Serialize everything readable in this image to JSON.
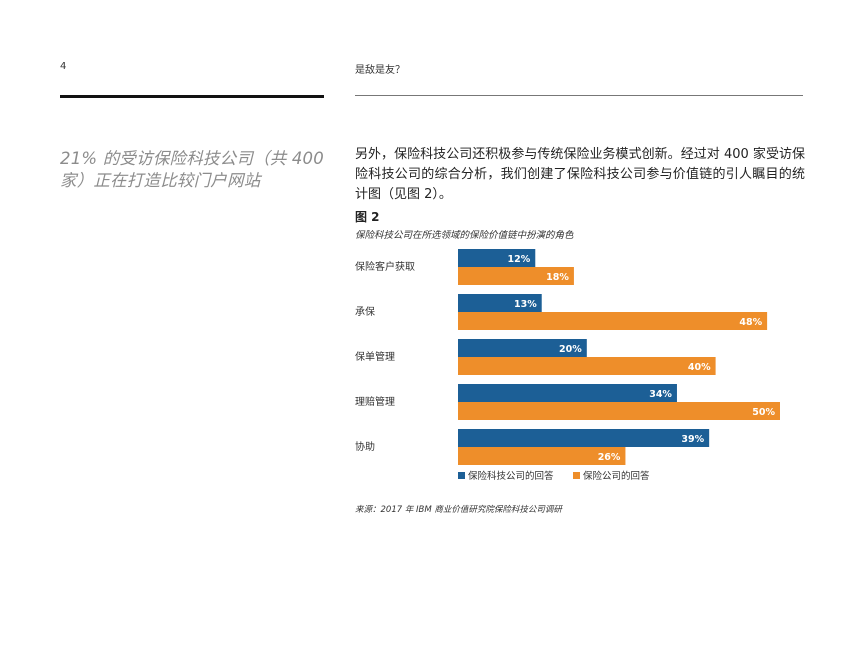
{
  "header": {
    "page_number": "4",
    "title": "是敌是友？"
  },
  "pull_quote": "21% 的受访保险科技公司（共 400 家）正在打造比较门户网站",
  "body_text": "另外，保险科技公司还积极参与传统保险业务模式创新。经过对 400 家受访保险科技公司的综合分析，我们创建了保险科技公司参与价值链的引人瞩目的统计图（见图 2）。",
  "figure": {
    "label": "图 2",
    "caption": "保险科技公司在所选领域的保险价值链中扮演的角色",
    "source": "来源：2017 年 IBM 商业价值研究院保险科技公司调研"
  },
  "colors": {
    "series_1": "#1c5f96",
    "series_2": "#ee8e2a"
  },
  "chart_data": {
    "type": "bar",
    "orientation": "horizontal",
    "categories": [
      "保险客户获取",
      "承保",
      "保单管理",
      "理赔管理",
      "协助"
    ],
    "series": [
      {
        "name": "保险科技公司的回答",
        "values": [
          12,
          13,
          20,
          34,
          39
        ]
      },
      {
        "name": "保险公司的回答",
        "values": [
          18,
          48,
          40,
          50,
          26
        ]
      }
    ],
    "value_suffix": "%",
    "xlim": [
      0,
      50
    ],
    "legend_position": "bottom",
    "grid": false
  }
}
